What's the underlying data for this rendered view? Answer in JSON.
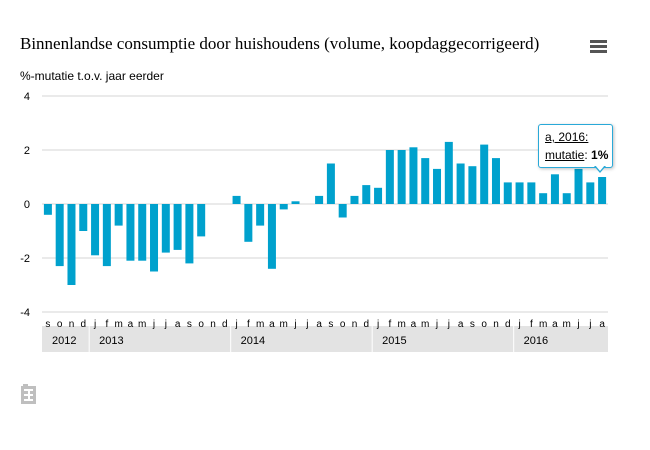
{
  "chart_data": {
    "type": "bar",
    "title": "Binnenlandse consumptie door huishoudens (volume, koopdaggecorrigeerd)",
    "ylabel": "%-mutatie t.o.v. jaar eerder",
    "ylim": [
      -4,
      4
    ],
    "yticks": [
      "4",
      "2",
      "0",
      "-2",
      "-4"
    ],
    "grid": true,
    "categories": [
      "s",
      "o",
      "n",
      "d",
      "j",
      "f",
      "m",
      "a",
      "m",
      "j",
      "j",
      "a",
      "s",
      "o",
      "n",
      "d",
      "j",
      "f",
      "m",
      "a",
      "m",
      "j",
      "j",
      "a",
      "s",
      "o",
      "n",
      "d",
      "j",
      "f",
      "m",
      "a",
      "m",
      "j",
      "j",
      "a",
      "s",
      "o",
      "n",
      "d",
      "j",
      "f",
      "m",
      "a",
      "m",
      "j",
      "j",
      "a"
    ],
    "years": [
      {
        "label": "2012",
        "start": 0
      },
      {
        "label": "2013",
        "start": 4
      },
      {
        "label": "2014",
        "start": 16
      },
      {
        "label": "2015",
        "start": 28
      },
      {
        "label": "2016",
        "start": 40
      }
    ],
    "values": [
      -0.4,
      -2.3,
      -3.0,
      -1.0,
      -1.9,
      -2.3,
      -0.8,
      -2.1,
      -2.1,
      -2.5,
      -1.8,
      -1.7,
      -2.2,
      -1.2,
      0.0,
      0.0,
      0.3,
      -1.4,
      -0.8,
      -2.4,
      -0.2,
      0.1,
      0.0,
      0.3,
      1.5,
      -0.5,
      0.3,
      0.7,
      0.6,
      2.0,
      2.0,
      2.1,
      1.7,
      1.3,
      2.3,
      1.5,
      1.4,
      2.2,
      1.7,
      0.8,
      0.8,
      0.8,
      0.4,
      1.1,
      0.4,
      1.3,
      0.8,
      1.0
    ],
    "bar_color": "#00a1cd"
  },
  "tooltip": {
    "line1": "a, 2016:",
    "key": "mutatie",
    "sep": ": ",
    "value": "1%"
  },
  "icons": {
    "menu": "hamburger-menu-icon",
    "logo": "cbs-logo-icon"
  }
}
